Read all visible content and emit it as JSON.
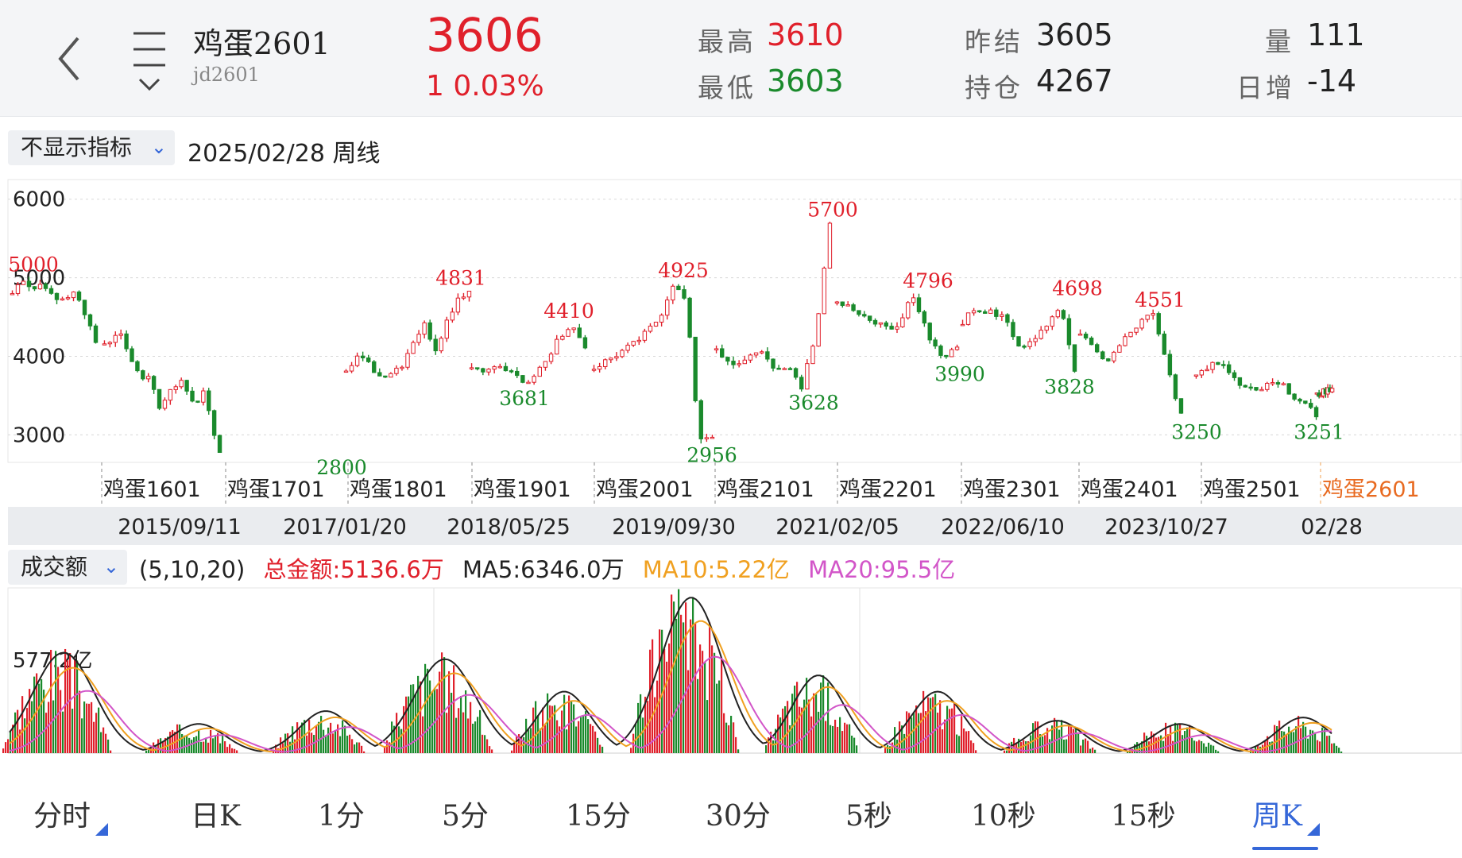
{
  "header": {
    "name": "鸡蛋2601",
    "code": "jd2601",
    "price": "3606",
    "change": "1  0.03%",
    "stats": {
      "high_label": "最高",
      "high": "3610",
      "low_label": "最低",
      "low": "3603",
      "prev_settle_label": "昨结",
      "prev_settle": "3605",
      "open_interest_label": "持仓",
      "open_interest": "4267",
      "volume_label": "量",
      "volume": "111",
      "daily_inc_label": "日增",
      "daily_inc": "-14"
    }
  },
  "indicator": {
    "label": "不显示指标",
    "date_title": "2025/02/28  周线"
  },
  "colors": {
    "up": "#e0202b",
    "down": "#1a8a2c",
    "accent": "#3567d8",
    "ma10": "#f0a020",
    "ma20": "#d255c8",
    "ma5": "#222222"
  },
  "chart_data": {
    "type": "candlestick",
    "y_ticks": [
      "6000",
      "5000",
      "4000",
      "3000"
    ],
    "ylim": [
      2650,
      6250
    ],
    "contracts": [
      "鸡蛋1601",
      "鸡蛋1701",
      "鸡蛋1801",
      "鸡蛋1901",
      "鸡蛋2001",
      "鸡蛋2101",
      "鸡蛋2201",
      "鸡蛋2301",
      "鸡蛋2401",
      "鸡蛋2501",
      "鸡蛋2601"
    ],
    "dates": [
      "2015/09/11",
      "2017/01/20",
      "2018/05/25",
      "2019/09/30",
      "2021/02/05",
      "2022/06/10",
      "2023/10/27",
      "02/28"
    ],
    "annotations": [
      {
        "text": "5000",
        "value": 5000,
        "type": "high"
      },
      {
        "text": "4831",
        "value": 4831,
        "type": "high"
      },
      {
        "text": "2800",
        "value": 2800,
        "type": "low"
      },
      {
        "text": "4410",
        "value": 4410,
        "type": "high"
      },
      {
        "text": "3681",
        "value": 3681,
        "type": "low"
      },
      {
        "text": "4925",
        "value": 4925,
        "type": "high"
      },
      {
        "text": "2956",
        "value": 2956,
        "type": "low"
      },
      {
        "text": "5700",
        "value": 5700,
        "type": "high"
      },
      {
        "text": "3628",
        "value": 3628,
        "type": "low"
      },
      {
        "text": "4796",
        "value": 4796,
        "type": "high"
      },
      {
        "text": "3990",
        "value": 3990,
        "type": "low"
      },
      {
        "text": "4698",
        "value": 4698,
        "type": "high"
      },
      {
        "text": "3828",
        "value": 3828,
        "type": "low"
      },
      {
        "text": "4551",
        "value": 4551,
        "type": "high"
      },
      {
        "text": "3250",
        "value": 3250,
        "type": "low"
      },
      {
        "text": "3251",
        "value": 3251,
        "type": "low"
      }
    ],
    "segments": [
      {
        "contract": "鸡蛋1601",
        "values": [
          4800,
          5000,
          4850,
          4950,
          4700,
          4750,
          4800,
          4550,
          4200
        ]
      },
      {
        "contract": "鸡蛋1701",
        "values": [
          4150,
          4200,
          4300,
          4100,
          3850,
          3750,
          3800,
          3300,
          3450,
          3600,
          3700,
          3500,
          3350,
          3600,
          3100,
          2800
        ]
      },
      {
        "contract": "鸡蛋1801",
        "values": [
          3850,
          4000,
          3900,
          3750,
          3800,
          3900,
          4200,
          4400,
          4100,
          4450,
          4750,
          4831
        ]
      },
      {
        "contract": "鸡蛋1901",
        "values": [
          3850,
          3800,
          3870,
          3750,
          3681,
          3850,
          4200,
          4410,
          4150
        ]
      },
      {
        "contract": "鸡蛋2001",
        "values": [
          3850,
          3950,
          4050,
          4150,
          4300,
          4500,
          4925,
          4700,
          2956,
          3000
        ]
      },
      {
        "contract": "鸡蛋2101",
        "values": [
          4100,
          3900,
          3950,
          4100,
          3850,
          3900,
          3628,
          4300,
          5700
        ]
      },
      {
        "contract": "鸡蛋2201",
        "values": [
          4700,
          4600,
          4450,
          4400,
          4350,
          4796,
          4300,
          3990,
          4100
        ]
      },
      {
        "contract": "鸡蛋2301",
        "values": [
          4450,
          4600,
          4550,
          4500,
          4100,
          4250,
          4350,
          4698,
          3828
        ]
      },
      {
        "contract": "鸡蛋2401",
        "values": [
          4300,
          4050,
          3950,
          4200,
          4400,
          4551,
          3900,
          3250
        ]
      },
      {
        "contract": "鸡蛋2501",
        "values": [
          3750,
          3900,
          3850,
          3600,
          3550,
          3650,
          3600,
          3400,
          3251
        ]
      },
      {
        "contract": "鸡蛋2601",
        "values": [
          3500,
          3600
        ]
      }
    ]
  },
  "volume": {
    "label": "成交额",
    "params": "(5,10,20)",
    "total": "总金额:5136.6万",
    "ma5": "MA5:6346.0万",
    "ma10": "MA10:5.22亿",
    "ma20": "MA20:95.5亿",
    "axis_label": "577.2亿",
    "peaks": [
      0.62,
      0.18,
      0.26,
      0.58,
      0.38,
      0.96,
      0.48,
      0.38,
      0.2,
      0.18,
      0.22
    ]
  },
  "tabs": [
    {
      "label": "分时",
      "marker": true
    },
    {
      "label": "日K"
    },
    {
      "label": "1分"
    },
    {
      "label": "5分"
    },
    {
      "label": "15分"
    },
    {
      "label": "30分"
    },
    {
      "label": "5秒"
    },
    {
      "label": "10秒"
    },
    {
      "label": "15秒"
    },
    {
      "label": "周K",
      "marker": true,
      "active": true
    }
  ]
}
